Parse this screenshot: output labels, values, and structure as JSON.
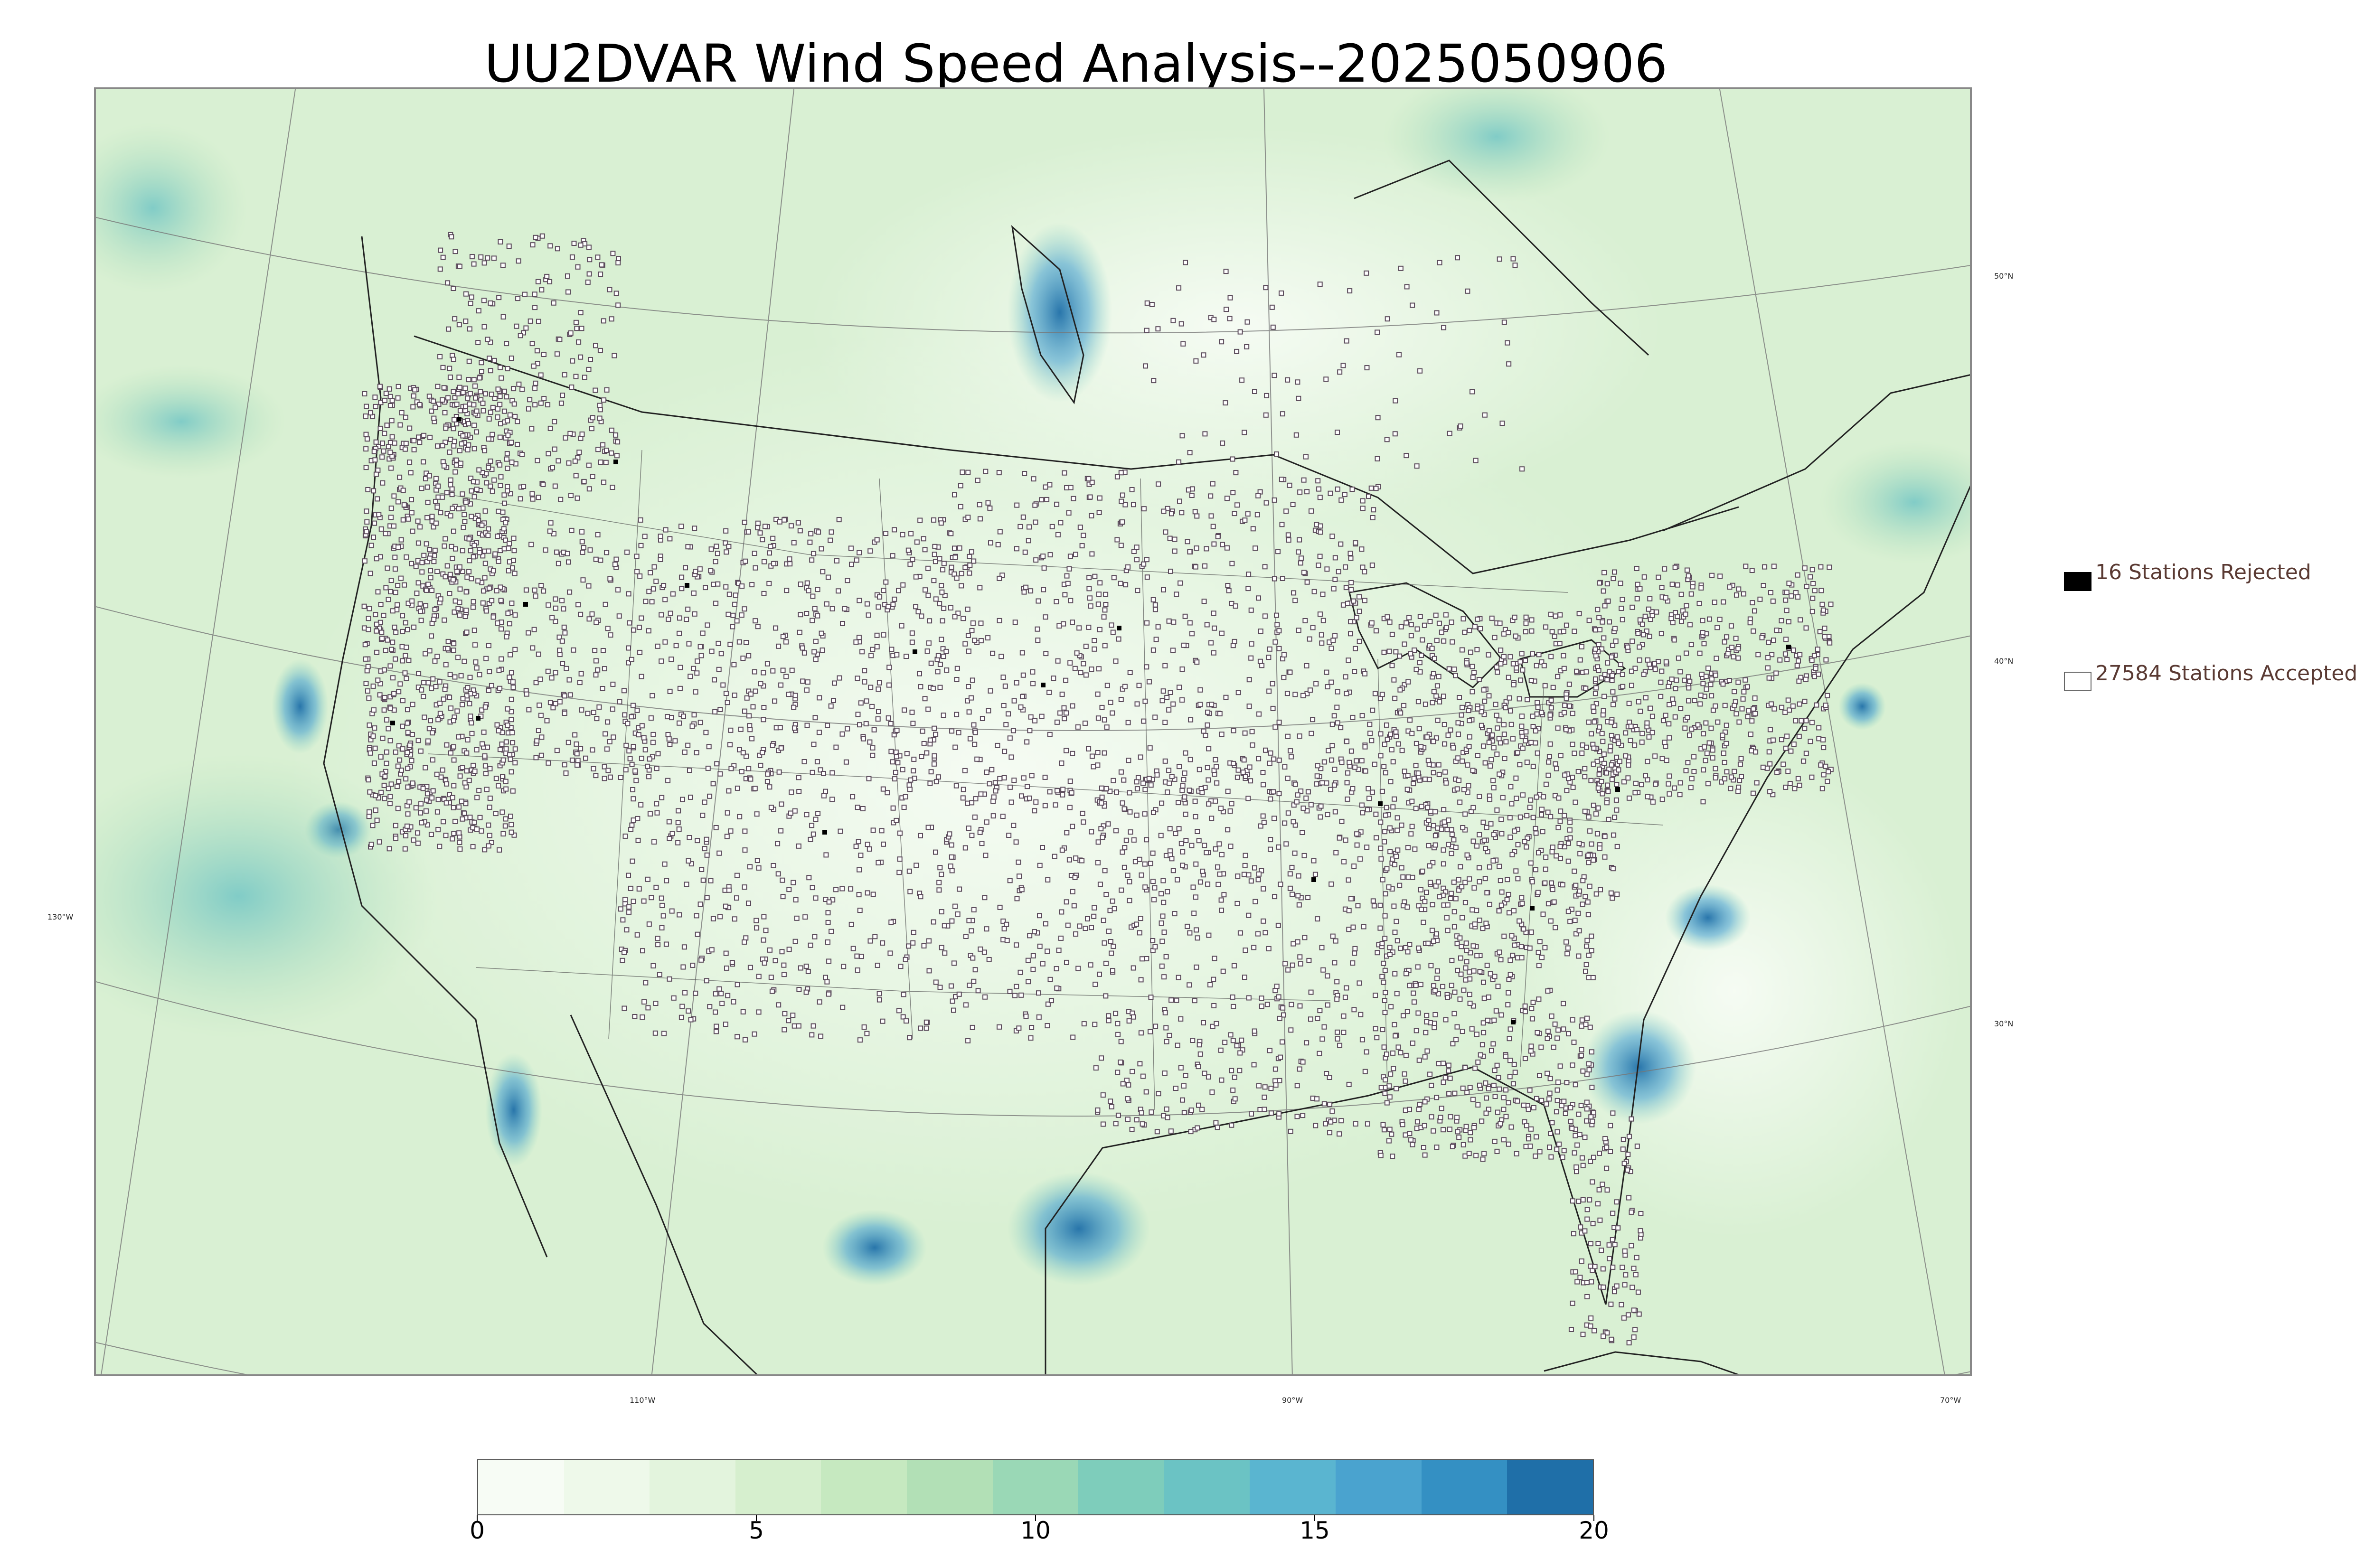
{
  "title": "UU2DVAR Wind Speed Analysis--2025050906",
  "map": {
    "lat_labels": [
      "50°N",
      "40°N",
      "30°N"
    ],
    "lon_labels": [
      "130°W",
      "110°W",
      "90°W",
      "70°W"
    ]
  },
  "legend": {
    "rejected": {
      "label": "16 Stations Rejected",
      "color": "#000000"
    },
    "accepted": {
      "label": "27584 Stations Accepted",
      "color": "#ffffff"
    }
  },
  "colorbar": {
    "min": 0,
    "max": 20,
    "tick_labels": [
      "0",
      "5",
      "10",
      "15",
      "20"
    ],
    "colors": [
      "#f7fcf5",
      "#eef9ea",
      "#e3f4dd",
      "#d6efce",
      "#c6e9c0",
      "#b2e0b6",
      "#9ad8b6",
      "#7ecdbb",
      "#6bc3c4",
      "#5ab5d0",
      "#4aa3cf",
      "#3490c3",
      "#1f6fa8"
    ]
  }
}
